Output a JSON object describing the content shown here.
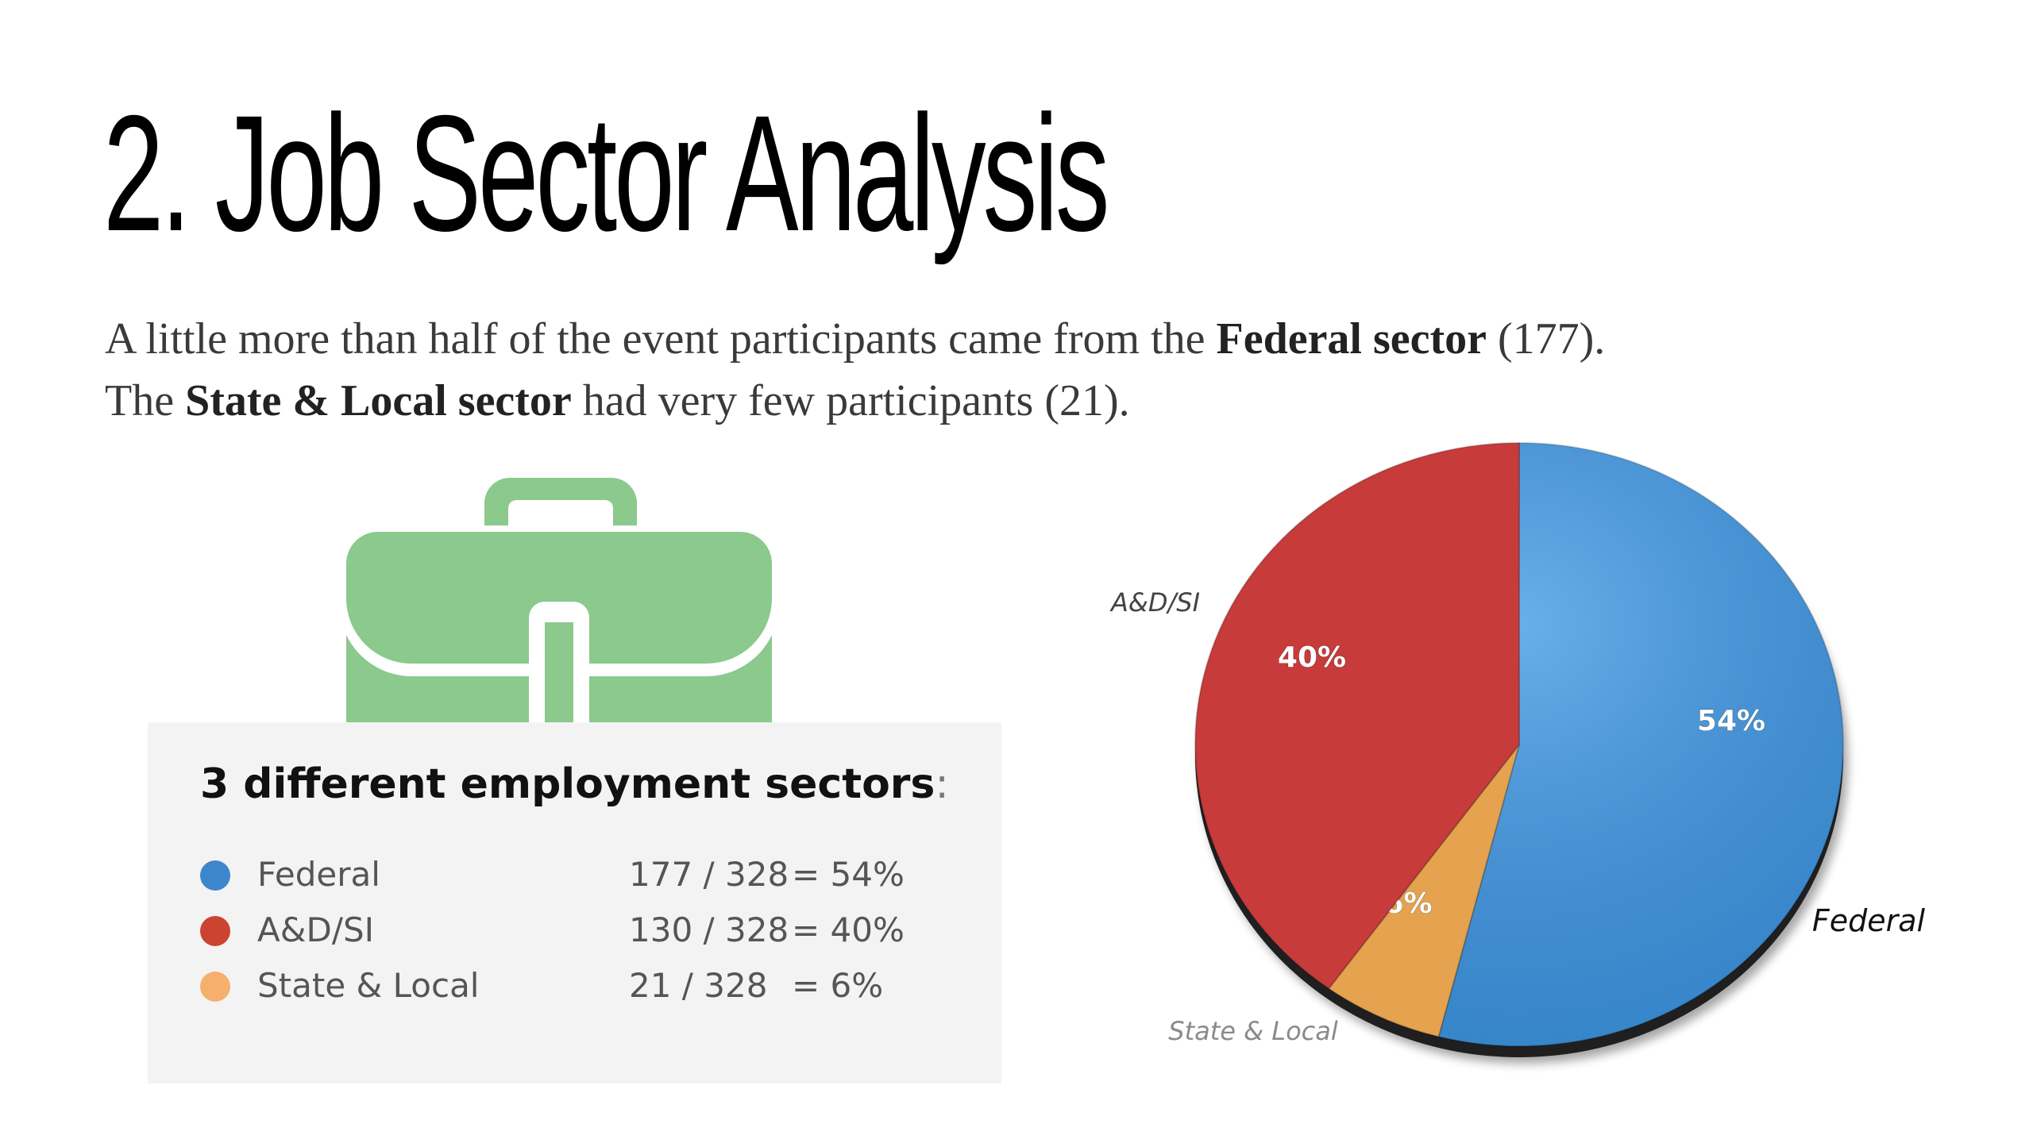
{
  "page": {
    "title": "2. Job Sector Analysis",
    "intro": {
      "line1_before": "A little more than half of the event participants came from the ",
      "line1_bold": "Federal sector",
      "line1_after": " (177).",
      "line2_before": "The ",
      "line2_bold": "State & Local sector",
      "line2_after": " had very few participants (21)."
    }
  },
  "briefcase": {
    "icon": "briefcase-icon",
    "color": "#8bc98d"
  },
  "sectors_card": {
    "title_main": "3 different employment sectors",
    "title_colon": ":",
    "rows": [
      {
        "name": "Federal",
        "count": "177 / 328",
        "pct": "= 54%",
        "color": "#3e86cc"
      },
      {
        "name": "A&D/SI",
        "count": "130 / 328",
        "pct": "= 40%",
        "color": "#cc4331"
      },
      {
        "name": "State & Local",
        "count": "21 / 328",
        "pct": "= 6%",
        "color": "#f5b06e"
      }
    ]
  },
  "chart_data": {
    "type": "pie",
    "slices": [
      {
        "label": "Federal",
        "value": 54,
        "value_label": "54%",
        "color": "#3f98e6"
      },
      {
        "label": "State & Local",
        "value": 6,
        "value_label": "6%",
        "color": "#e5a24f"
      },
      {
        "label": "A&D/SI",
        "value": 40,
        "value_label": "40%",
        "color": "#c73b3b"
      }
    ],
    "start": "12 o'clock",
    "direction": "clockwise"
  }
}
